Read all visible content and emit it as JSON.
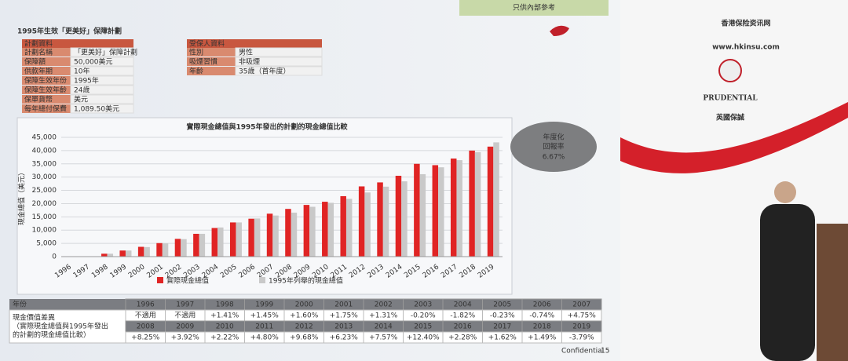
{
  "header": {
    "notice": "只供內部參考",
    "title": "1995年生效「更美好」保障計劃"
  },
  "plan_info": {
    "heading": "計劃資料",
    "rows": [
      [
        "計劃名稱",
        "「更美好」保障計劃"
      ],
      [
        "保障額",
        "50,000美元"
      ],
      [
        "供款年期",
        "10年"
      ],
      [
        "保障生效年份",
        "1995年"
      ],
      [
        "保障生效年齡",
        "24歲"
      ],
      [
        "保單貨幣",
        "美元"
      ],
      [
        "每年總付保費",
        "1,089.50美元"
      ]
    ]
  },
  "insured_info": {
    "heading": "受保人資料",
    "rows": [
      [
        "性別",
        "男性"
      ],
      [
        "吸煙習慣",
        "非吸煙"
      ],
      [
        "年齡",
        "35歲（首年度）"
      ]
    ]
  },
  "bubble": {
    "line1": "年度化",
    "line2": "回報率",
    "value": "6.67%"
  },
  "chart_data": {
    "type": "bar",
    "title": "實際現金總值與1995年發出的計劃的現金總值比較",
    "ylabel": "現金總值（美元）",
    "categories": [
      "1996",
      "1997",
      "1998",
      "1999",
      "2000",
      "2001",
      "2002",
      "2003",
      "2004",
      "2005",
      "2006",
      "2007",
      "2008",
      "2009",
      "2010",
      "2011",
      "2012",
      "2013",
      "2014",
      "2015",
      "2016",
      "2017",
      "2018",
      "2019"
    ],
    "series": [
      {
        "name": "實際現金總值",
        "color": "#e02424",
        "values": [
          0,
          0,
          1100,
          2300,
          3700,
          5100,
          6700,
          8600,
          10800,
          12900,
          14300,
          16200,
          18000,
          19500,
          20700,
          22800,
          26500,
          28000,
          30500,
          35000,
          34500,
          37000,
          40000,
          41500
        ]
      },
      {
        "name": "1995年列舉的現金總值",
        "color": "#c9c9c9",
        "values": [
          0,
          0,
          1100,
          2300,
          3600,
          5000,
          6600,
          8600,
          11000,
          12900,
          14400,
          15500,
          16600,
          18800,
          20300,
          21800,
          24200,
          26400,
          28400,
          31100,
          33700,
          36400,
          39400,
          43100
        ]
      }
    ],
    "ylim": [
      0,
      45000
    ],
    "yticks": [
      0,
      {
        "value": 5000,
        "label": "5,000"
      },
      {
        "value": 10000,
        "label": "10,000"
      },
      {
        "value": 15000,
        "label": "15,000"
      },
      {
        "value": 20000,
        "label": "20,000"
      },
      {
        "value": 25000,
        "label": "25,000"
      },
      {
        "value": 30000,
        "label": "30,000"
      },
      {
        "value": 35000,
        "label": "35,000"
      },
      {
        "value": 40000,
        "label": "40,000"
      },
      {
        "value": 45000,
        "label": "45,000"
      }
    ],
    "grid": true,
    "legend": "bottom"
  },
  "diff_table": {
    "header": "年份",
    "row_label": [
      "現金價值差異",
      "（實際現金總值與1995年發出",
      "的計劃的現金總值比較）"
    ],
    "rows": [
      {
        "years": [
          "1996",
          "1997",
          "1998",
          "1999",
          "2000",
          "2001",
          "2002",
          "2003",
          "2004",
          "2005",
          "2006",
          "2007"
        ],
        "values": [
          "不適用",
          "不適用",
          "+1.41%",
          "+1.45%",
          "+1.60%",
          "+1.75%",
          "+1.31%",
          "-0.20%",
          "-1.82%",
          "-0.23%",
          "-0.74%",
          "+4.75%"
        ]
      },
      {
        "years": [
          "2008",
          "2009",
          "2010",
          "2011",
          "2012",
          "2013",
          "2014",
          "2015",
          "2016",
          "2017",
          "2018",
          "2019"
        ],
        "values": [
          "+8.25%",
          "+3.92%",
          "+2.22%",
          "+4.80%",
          "+9.68%",
          "+6.23%",
          "+7.57%",
          "+12.40%",
          "+2.28%",
          "+1.62%",
          "+1.49%",
          "-3.79%"
        ]
      }
    ]
  },
  "footer": {
    "confidential": "Confidential",
    "page": "15"
  },
  "logo": {
    "brand": "PRUDENTIAL",
    "chinese": "英國保誠"
  },
  "watermark": {
    "name": "香港保险资讯网",
    "url": "www.hkinsu.com"
  }
}
